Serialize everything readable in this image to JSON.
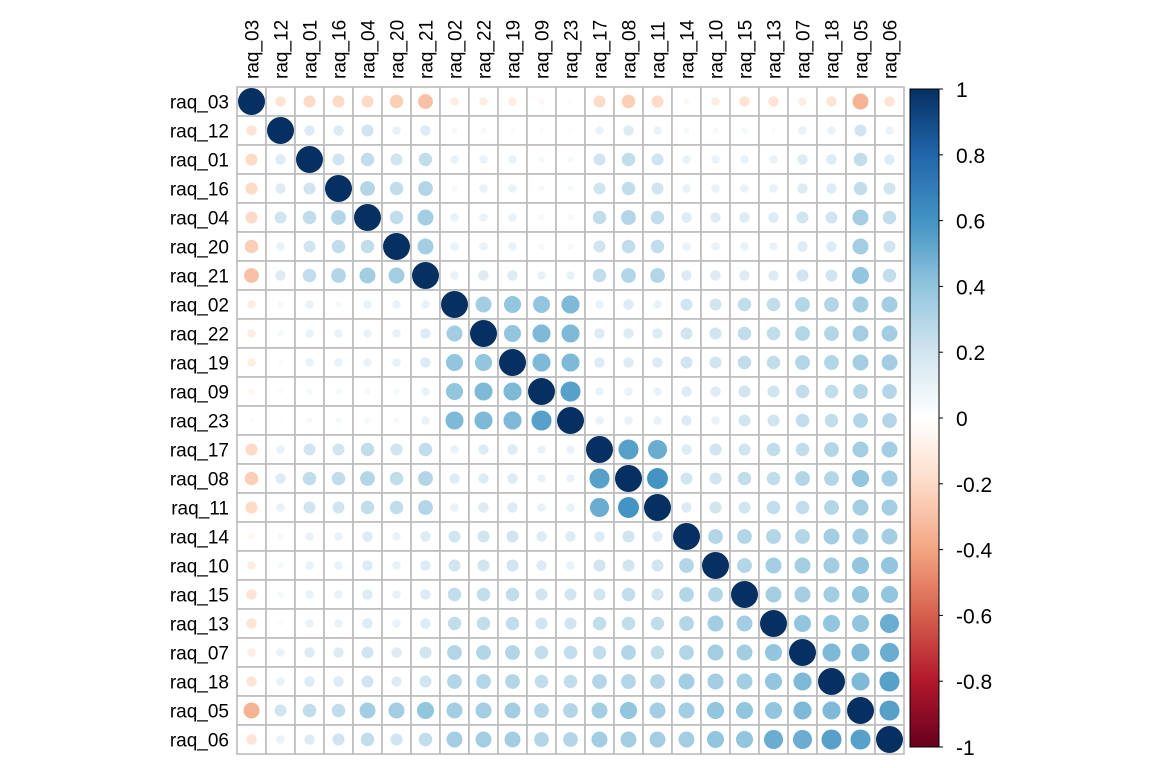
{
  "chart_data": {
    "type": "heatmap",
    "style": "correlation-circles",
    "variables": [
      "raq_03",
      "raq_12",
      "raq_01",
      "raq_16",
      "raq_04",
      "raq_20",
      "raq_21",
      "raq_02",
      "raq_22",
      "raq_19",
      "raq_09",
      "raq_23",
      "raq_17",
      "raq_08",
      "raq_11",
      "raq_14",
      "raq_10",
      "raq_15",
      "raq_13",
      "raq_07",
      "raq_18",
      "raq_05",
      "raq_06"
    ],
    "matrix": [
      [
        1,
        -0.15,
        -0.2,
        -0.2,
        -0.2,
        -0.25,
        -0.3,
        -0.1,
        -0.1,
        -0.1,
        -0.05,
        -0.03,
        -0.2,
        -0.25,
        -0.2,
        -0.05,
        -0.1,
        -0.15,
        -0.15,
        -0.1,
        -0.15,
        -0.35,
        -0.15
      ],
      [
        -0.15,
        1,
        0.15,
        0.15,
        0.2,
        0.1,
        0.15,
        0.05,
        0.05,
        0.03,
        0.03,
        0.02,
        0.1,
        0.15,
        0.1,
        0.05,
        0.05,
        0.05,
        0.03,
        0.1,
        0.1,
        0.2,
        0.1
      ],
      [
        -0.2,
        0.15,
        1,
        0.2,
        0.25,
        0.2,
        0.25,
        0.1,
        0.1,
        0.1,
        0.05,
        0.05,
        0.2,
        0.25,
        0.2,
        0.1,
        0.1,
        0.1,
        0.1,
        0.15,
        0.15,
        0.25,
        0.15
      ],
      [
        -0.2,
        0.15,
        0.2,
        1,
        0.3,
        0.25,
        0.3,
        0.05,
        0.1,
        0.1,
        0.05,
        0.05,
        0.2,
        0.25,
        0.2,
        0.1,
        0.1,
        0.1,
        0.1,
        0.15,
        0.15,
        0.25,
        0.2
      ],
      [
        -0.2,
        0.2,
        0.25,
        0.3,
        1,
        0.25,
        0.35,
        0.1,
        0.1,
        0.1,
        0.05,
        0.05,
        0.25,
        0.3,
        0.25,
        0.15,
        0.15,
        0.15,
        0.15,
        0.2,
        0.2,
        0.35,
        0.25
      ],
      [
        -0.25,
        0.1,
        0.2,
        0.25,
        0.25,
        1,
        0.35,
        0.1,
        0.1,
        0.1,
        0.05,
        0.05,
        0.2,
        0.25,
        0.25,
        0.1,
        0.1,
        0.1,
        0.1,
        0.15,
        0.15,
        0.35,
        0.2
      ],
      [
        -0.3,
        0.15,
        0.25,
        0.3,
        0.35,
        0.35,
        1,
        0.1,
        0.15,
        0.15,
        0.1,
        0.1,
        0.25,
        0.3,
        0.3,
        0.15,
        0.15,
        0.15,
        0.15,
        0.2,
        0.2,
        0.4,
        0.25
      ],
      [
        -0.1,
        0.05,
        0.1,
        0.05,
        0.1,
        0.1,
        0.1,
        1,
        0.35,
        0.4,
        0.4,
        0.45,
        0.1,
        0.15,
        0.1,
        0.2,
        0.2,
        0.25,
        0.25,
        0.3,
        0.3,
        0.35,
        0.35
      ],
      [
        -0.1,
        0.05,
        0.1,
        0.1,
        0.1,
        0.1,
        0.15,
        0.35,
        1,
        0.4,
        0.45,
        0.45,
        0.15,
        0.15,
        0.15,
        0.2,
        0.2,
        0.25,
        0.25,
        0.3,
        0.3,
        0.35,
        0.35
      ],
      [
        -0.1,
        0.03,
        0.1,
        0.1,
        0.1,
        0.1,
        0.15,
        0.4,
        0.4,
        1,
        0.45,
        0.45,
        0.15,
        0.15,
        0.15,
        0.2,
        0.2,
        0.25,
        0.25,
        0.3,
        0.3,
        0.35,
        0.35
      ],
      [
        -0.05,
        0.03,
        0.05,
        0.05,
        0.05,
        0.05,
        0.1,
        0.4,
        0.45,
        0.45,
        1,
        0.55,
        0.1,
        0.1,
        0.1,
        0.15,
        0.15,
        0.2,
        0.2,
        0.25,
        0.25,
        0.3,
        0.3
      ],
      [
        -0.03,
        0.02,
        0.05,
        0.05,
        0.05,
        0.05,
        0.1,
        0.45,
        0.45,
        0.45,
        0.55,
        1,
        0.1,
        0.1,
        0.1,
        0.15,
        0.1,
        0.2,
        0.2,
        0.25,
        0.25,
        0.3,
        0.3
      ],
      [
        -0.2,
        0.1,
        0.2,
        0.2,
        0.25,
        0.2,
        0.25,
        0.1,
        0.15,
        0.15,
        0.1,
        0.1,
        1,
        0.55,
        0.5,
        0.15,
        0.2,
        0.2,
        0.25,
        0.25,
        0.3,
        0.35,
        0.35
      ],
      [
        -0.25,
        0.15,
        0.25,
        0.25,
        0.3,
        0.25,
        0.3,
        0.15,
        0.15,
        0.15,
        0.1,
        0.1,
        0.55,
        1,
        0.6,
        0.2,
        0.2,
        0.25,
        0.25,
        0.3,
        0.3,
        0.4,
        0.35
      ],
      [
        -0.2,
        0.1,
        0.2,
        0.2,
        0.25,
        0.25,
        0.3,
        0.1,
        0.15,
        0.15,
        0.1,
        0.1,
        0.5,
        0.6,
        1,
        0.15,
        0.2,
        0.2,
        0.25,
        0.25,
        0.3,
        0.35,
        0.35
      ],
      [
        -0.05,
        0.05,
        0.1,
        0.1,
        0.15,
        0.1,
        0.15,
        0.2,
        0.2,
        0.2,
        0.15,
        0.15,
        0.15,
        0.2,
        0.15,
        1,
        0.3,
        0.3,
        0.3,
        0.3,
        0.35,
        0.35,
        0.35
      ],
      [
        -0.1,
        0.05,
        0.1,
        0.1,
        0.15,
        0.1,
        0.15,
        0.2,
        0.2,
        0.2,
        0.15,
        0.1,
        0.2,
        0.2,
        0.2,
        0.3,
        1,
        0.3,
        0.35,
        0.35,
        0.35,
        0.4,
        0.4
      ],
      [
        -0.15,
        0.05,
        0.1,
        0.1,
        0.15,
        0.1,
        0.15,
        0.25,
        0.25,
        0.25,
        0.2,
        0.2,
        0.2,
        0.25,
        0.2,
        0.3,
        0.3,
        1,
        0.35,
        0.35,
        0.35,
        0.4,
        0.4
      ],
      [
        -0.15,
        0.03,
        0.1,
        0.1,
        0.15,
        0.1,
        0.15,
        0.25,
        0.25,
        0.25,
        0.2,
        0.2,
        0.25,
        0.25,
        0.25,
        0.3,
        0.35,
        0.35,
        1,
        0.4,
        0.4,
        0.4,
        0.5
      ],
      [
        -0.1,
        0.1,
        0.15,
        0.15,
        0.2,
        0.15,
        0.2,
        0.3,
        0.3,
        0.3,
        0.25,
        0.25,
        0.25,
        0.3,
        0.25,
        0.3,
        0.35,
        0.35,
        0.4,
        1,
        0.45,
        0.45,
        0.5
      ],
      [
        -0.15,
        0.1,
        0.15,
        0.15,
        0.2,
        0.15,
        0.2,
        0.3,
        0.3,
        0.3,
        0.25,
        0.25,
        0.3,
        0.3,
        0.3,
        0.35,
        0.35,
        0.35,
        0.4,
        0.45,
        1,
        0.45,
        0.55
      ],
      [
        -0.35,
        0.2,
        0.25,
        0.25,
        0.35,
        0.35,
        0.4,
        0.35,
        0.35,
        0.35,
        0.3,
        0.3,
        0.35,
        0.4,
        0.35,
        0.35,
        0.4,
        0.4,
        0.4,
        0.45,
        0.45,
        1,
        0.55
      ],
      [
        -0.15,
        0.1,
        0.15,
        0.2,
        0.25,
        0.2,
        0.25,
        0.35,
        0.35,
        0.35,
        0.3,
        0.3,
        0.35,
        0.35,
        0.35,
        0.35,
        0.4,
        0.4,
        0.5,
        0.5,
        0.55,
        0.55,
        1
      ]
    ],
    "colorbar": {
      "range": [
        -1,
        1
      ],
      "ticks": [
        "1",
        "0.8",
        "0.6",
        "0.4",
        "0.2",
        "0",
        "-0.2",
        "-0.4",
        "-0.6",
        "-0.8",
        "-1"
      ],
      "stops": [
        {
          "v": -1.0,
          "color": "#67001F"
        },
        {
          "v": -0.8,
          "color": "#B2182B"
        },
        {
          "v": -0.6,
          "color": "#D6604D"
        },
        {
          "v": -0.4,
          "color": "#F4A582"
        },
        {
          "v": -0.2,
          "color": "#FDDBC7"
        },
        {
          "v": 0.0,
          "color": "#FFFFFF"
        },
        {
          "v": 0.2,
          "color": "#D1E5F0"
        },
        {
          "v": 0.4,
          "color": "#92C5DE"
        },
        {
          "v": 0.6,
          "color": "#4393C3"
        },
        {
          "v": 0.8,
          "color": "#2166AC"
        },
        {
          "v": 1.0,
          "color": "#053061"
        }
      ]
    },
    "grid": true,
    "grid_color": "#bbbbbb",
    "legend_position": "right"
  }
}
